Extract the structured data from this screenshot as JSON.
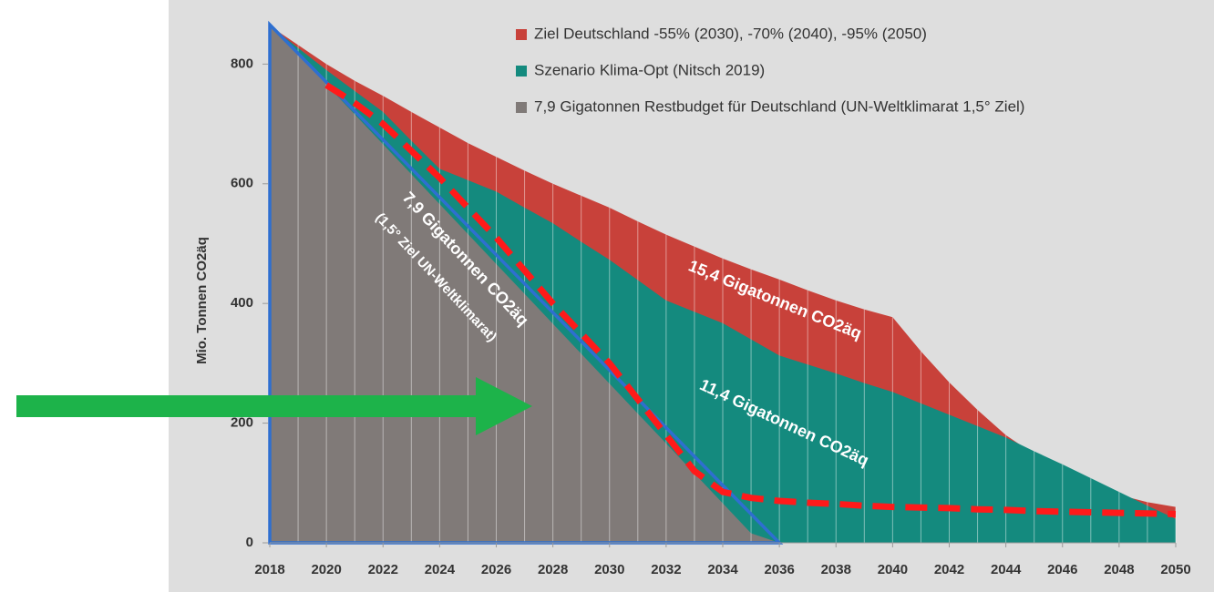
{
  "chart_data": {
    "type": "area",
    "y_label": "Mio. Tonnen CO2äq",
    "x": [
      2018,
      2019,
      2020,
      2021,
      2022,
      2023,
      2024,
      2025,
      2026,
      2027,
      2028,
      2029,
      2030,
      2031,
      2032,
      2033,
      2034,
      2035,
      2036,
      2037,
      2038,
      2039,
      2040,
      2041,
      2042,
      2043,
      2044,
      2045,
      2046,
      2047,
      2048,
      2049,
      2050
    ],
    "xlim": [
      2018,
      2050
    ],
    "xticks": [
      2018,
      2020,
      2022,
      2024,
      2026,
      2028,
      2030,
      2032,
      2034,
      2036,
      2038,
      2040,
      2042,
      2044,
      2046,
      2048,
      2050
    ],
    "ylim": [
      0,
      866
    ],
    "yticks": [
      0,
      200,
      400,
      600,
      800
    ],
    "legend": "top-right",
    "series": [
      {
        "name": "Ziel Deutschland -55% (2030), -70% (2040), -95% (2050)",
        "color": "#c8413a",
        "values": [
          864,
          832,
          800,
          772,
          747,
          720,
          694,
          668,
          645,
          622,
          600,
          580,
          560,
          537,
          515,
          495,
          475,
          457,
          440,
          422,
          405,
          390,
          377,
          320,
          268,
          222,
          180,
          148,
          120,
          98,
          80,
          68,
          60
        ]
      },
      {
        "name": "Szenario Klima-Opt (Nitsch 2019)",
        "color": "#148a7e",
        "values": [
          864,
          827,
          790,
          755,
          720,
          672,
          625,
          606,
          587,
          560,
          534,
          503,
          473,
          439,
          405,
          386,
          367,
          340,
          313,
          298,
          283,
          267,
          252,
          233,
          214,
          195,
          176,
          153,
          131,
          108,
          85,
          62,
          40
        ]
      },
      {
        "name": "7,9 Gigatonnen Restbudget für Deutschland (UN-Weltklimarat 1,5° Ziel)",
        "color": "#807a78",
        "values": [
          866,
          816,
          766,
          716,
          666,
          616,
          566,
          516,
          466,
          416,
          366,
          316,
          266,
          216,
          166,
          116,
          66,
          16,
          0,
          null,
          null,
          null,
          null,
          null,
          null,
          null,
          null,
          null,
          null,
          null,
          null,
          null,
          null
        ]
      },
      {
        "color": "#ff1a1a",
        "style": "dashed",
        "values": [
          null,
          null,
          765,
          735,
          700,
          655,
          610,
          560,
          510,
          455,
          400,
          350,
          300,
          240,
          180,
          120,
          85,
          75,
          70,
          67,
          65,
          62,
          60,
          59,
          58,
          56,
          55,
          53,
          52,
          51,
          50,
          49,
          48
        ]
      }
    ],
    "annotations": [
      "15,4 Gigatonnen CO2äq",
      "11,4 Gigatonnen CO2äq",
      "7,9 Gigatonnen CO2äq",
      "(1,5° Ziel UN-Weltklimarat)"
    ]
  }
}
